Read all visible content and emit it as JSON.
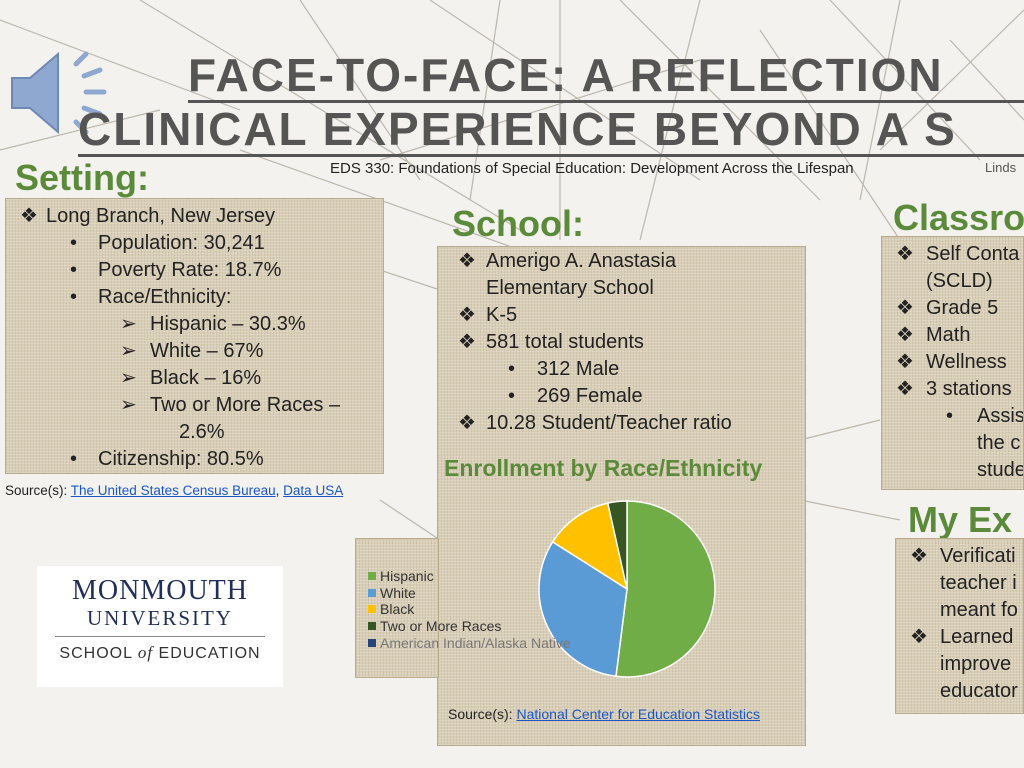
{
  "title": {
    "line1": "FACE-TO-FACE: A REFLECTION",
    "line2": "CLINICAL EXPERIENCE BEYOND A S",
    "subtitle": "EDS 330: Foundations of Special Education: Development Across the Lifespan",
    "author": "Linds"
  },
  "setting": {
    "heading": "Setting:",
    "items": [
      "Long Branch, New Jersey",
      "Population: 30,241",
      "Poverty Rate: 18.7%",
      "Race/Ethnicity:",
      "Hispanic – 30.3%",
      "White – 67%",
      "Black – 16%",
      "Two or More Races –",
      "2.6%",
      "Citizenship: 80.5%"
    ],
    "source_prefix": "Source(s): ",
    "source_link1": "The United States Census Bureau",
    "source_sep": ", ",
    "source_link2": "Data USA"
  },
  "school": {
    "heading": "School:",
    "items": [
      "Amerigo A. Anastasia Elementary School",
      "K-5",
      "581 total students",
      "312 Male",
      "269 Female",
      "10.28 Student/Teacher ratio"
    ],
    "source_prefix": "Source(s): ",
    "source_link": "National Center for Education Statistics"
  },
  "classroom": {
    "heading": "Classro",
    "items": [
      "Self Conta",
      "(SCLD)",
      "Grade 5",
      "Math",
      "Wellness ",
      "3 stations",
      "Assis",
      "the c",
      "stude"
    ]
  },
  "experience": {
    "heading": "My Ex",
    "items": [
      "Verificati",
      "teacher i",
      "meant fo",
      "Learned",
      "improve",
      "educator"
    ]
  },
  "logo": {
    "line1": "MONMOUTH",
    "line2": "UNIVERSITY",
    "line3_a": "SCHOOL ",
    "line3_b": "of",
    "line3_c": " EDUCATION"
  },
  "icons": {
    "speaker": "speaker-icon",
    "diamond_bullet": "diamond-bullet-icon",
    "arrow_bullet": "arrow-bullet-icon"
  },
  "chart_data": {
    "type": "pie",
    "title": "Enrollment by Race/Ethnicity",
    "categories": [
      "Hispanic",
      "White",
      "Black",
      "Two or More Races",
      "American Indian/Alaska Native"
    ],
    "values": [
      52,
      32,
      12.5,
      3.5,
      0
    ],
    "colors": [
      "#70ad47",
      "#5b9bd5",
      "#ffc000",
      "#375623",
      "#264478"
    ],
    "legend": "left"
  }
}
